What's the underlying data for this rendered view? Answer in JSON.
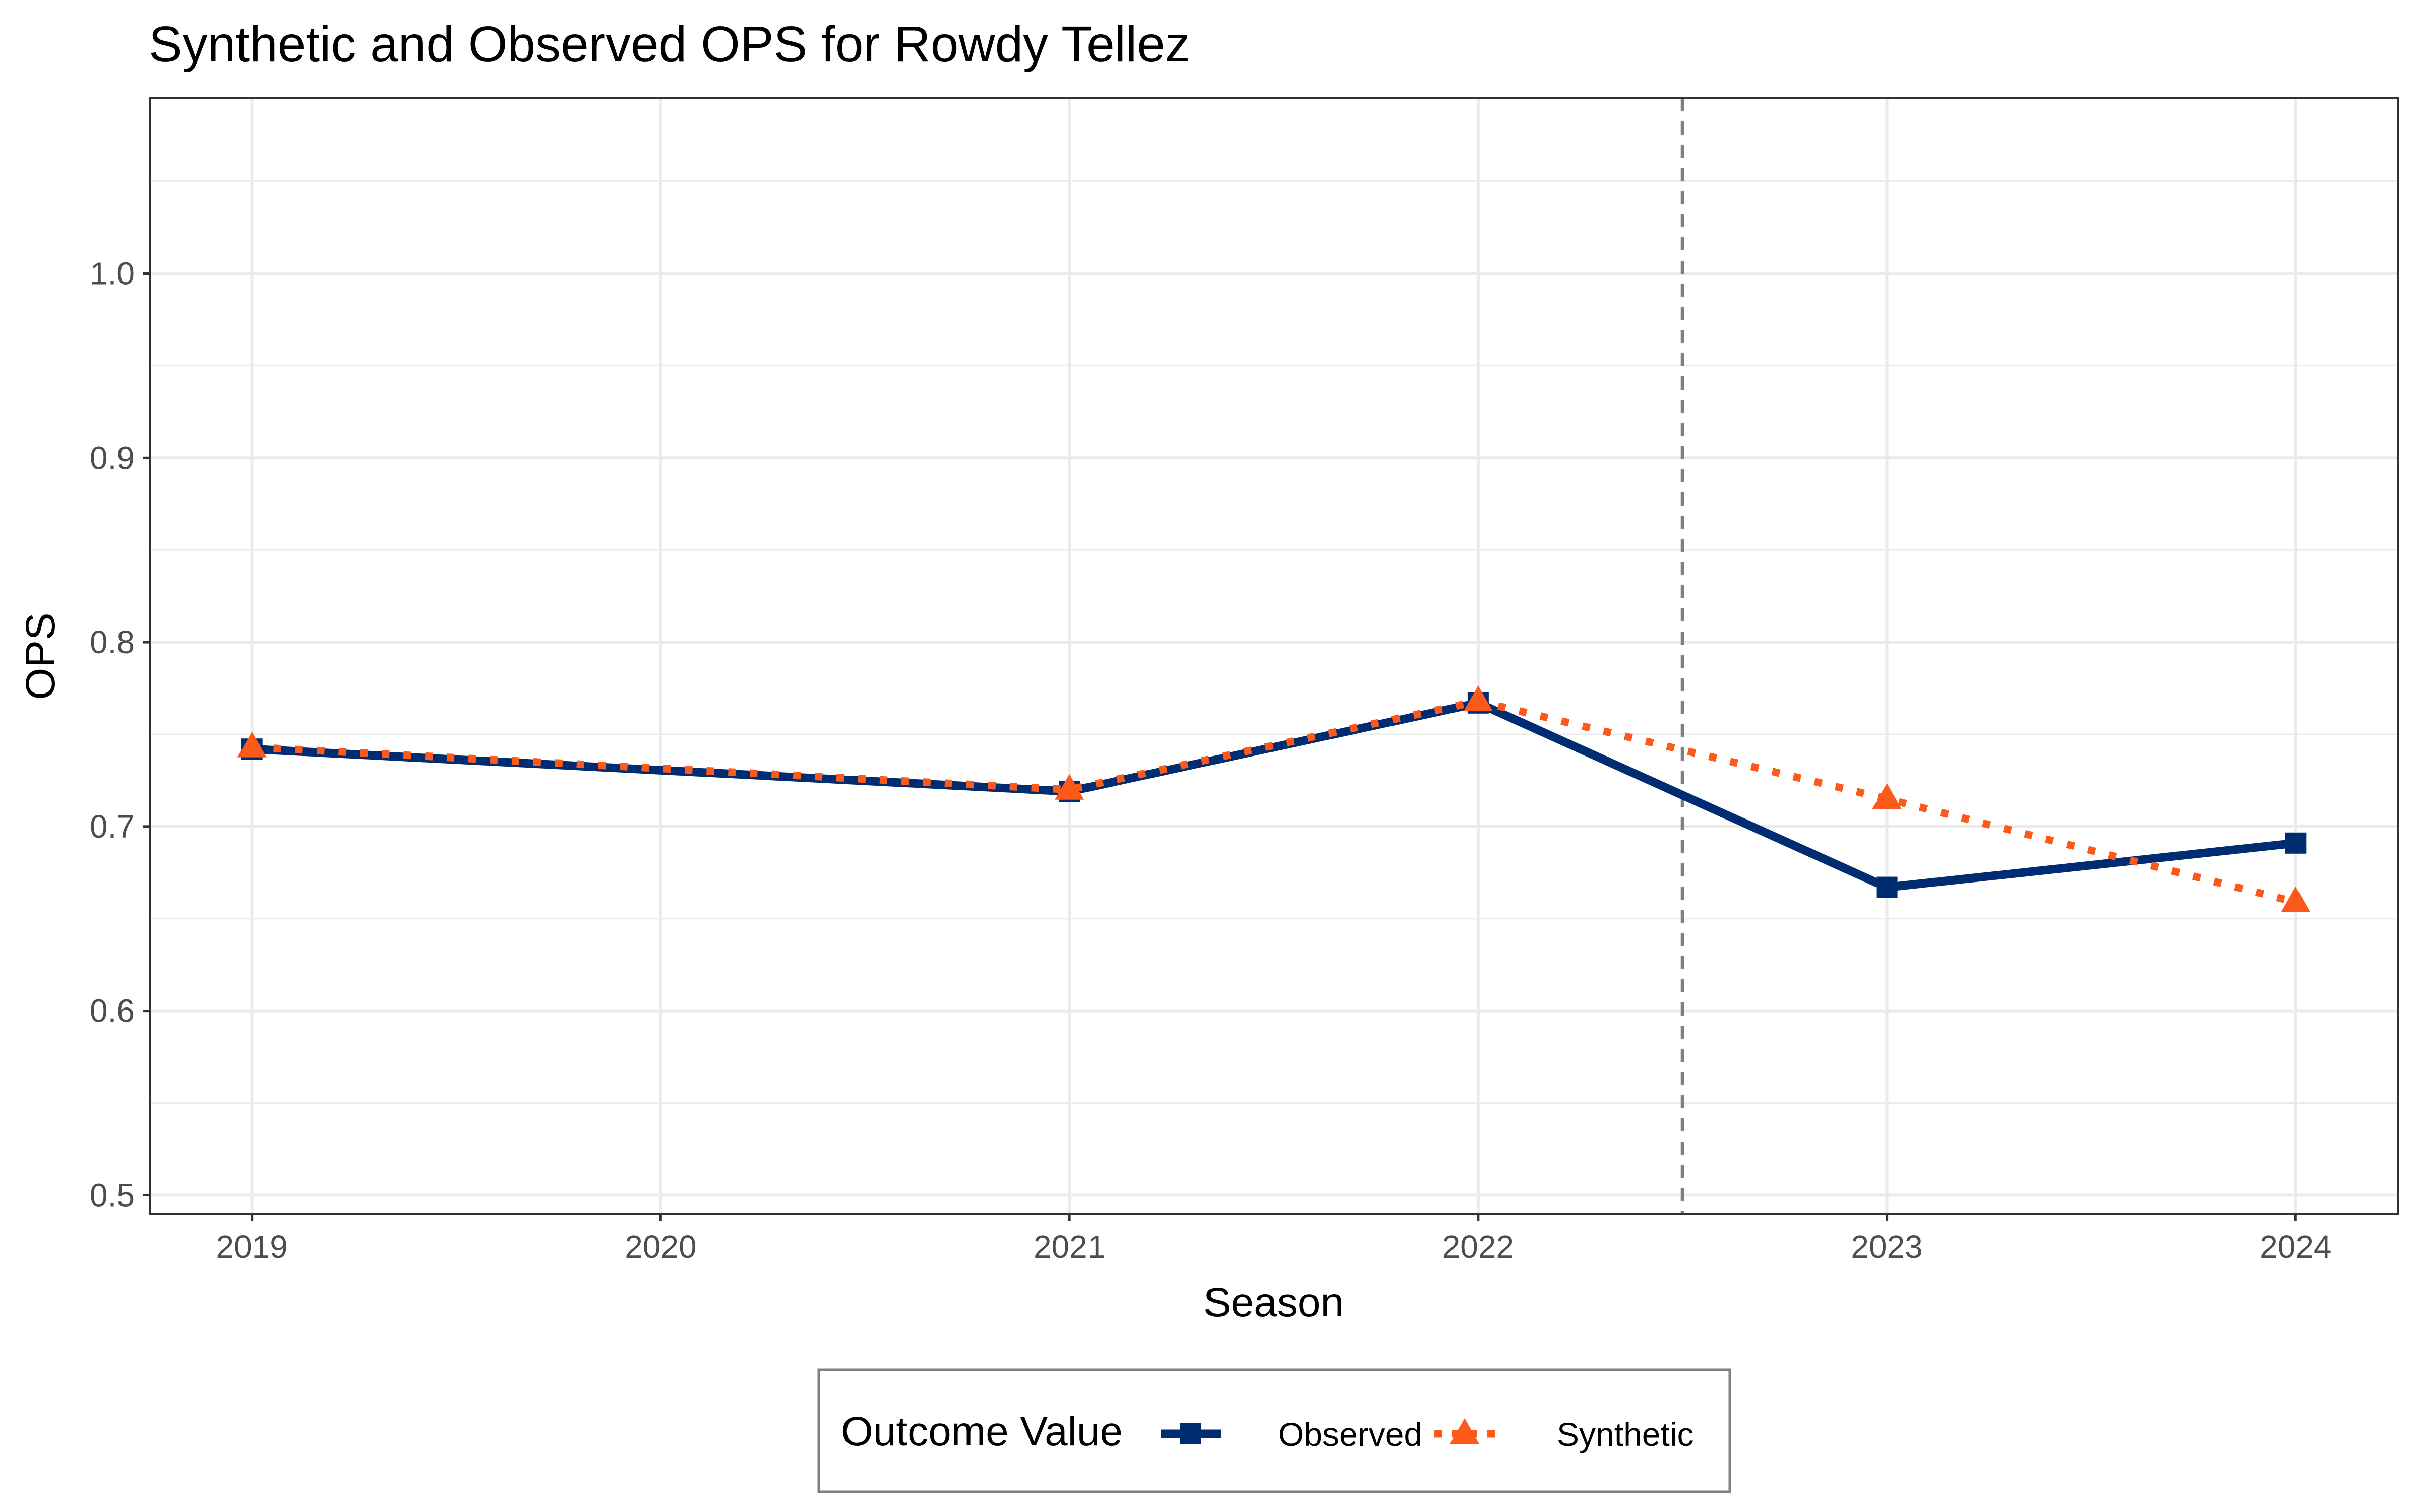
{
  "chart_data": {
    "type": "line",
    "title": "Synthetic and Observed OPS for Rowdy Tellez",
    "xlabel": "Season",
    "ylabel": "OPS",
    "x": [
      2019,
      2020,
      2021,
      2022,
      2023,
      2024
    ],
    "x_ticks": [
      "2019",
      "2020",
      "2021",
      "2022",
      "2023",
      "2024"
    ],
    "xlim": [
      2018.75,
      2024.25
    ],
    "ylim": [
      0.49,
      1.095
    ],
    "y_ticks": [
      "0.5",
      "0.6",
      "0.7",
      "0.8",
      "0.9",
      "1.0"
    ],
    "grid": true,
    "intervention_line": 2022.5,
    "series": [
      {
        "name": "Observed",
        "color": "#002d72",
        "style": "solid",
        "marker": "square",
        "points": [
          [
            2019,
            0.742
          ],
          [
            2021,
            0.719
          ],
          [
            2022,
            0.767
          ],
          [
            2023,
            0.667
          ],
          [
            2024,
            0.691
          ]
        ]
      },
      {
        "name": "Synthetic",
        "color": "#fc5a1b",
        "style": "dotted",
        "marker": "triangle",
        "points": [
          [
            2019,
            0.743
          ],
          [
            2021,
            0.72
          ],
          [
            2022,
            0.768
          ],
          [
            2023,
            0.715
          ],
          [
            2024,
            0.659
          ]
        ]
      }
    ],
    "legend": {
      "title": "Outcome Value",
      "position": "bottom"
    }
  }
}
